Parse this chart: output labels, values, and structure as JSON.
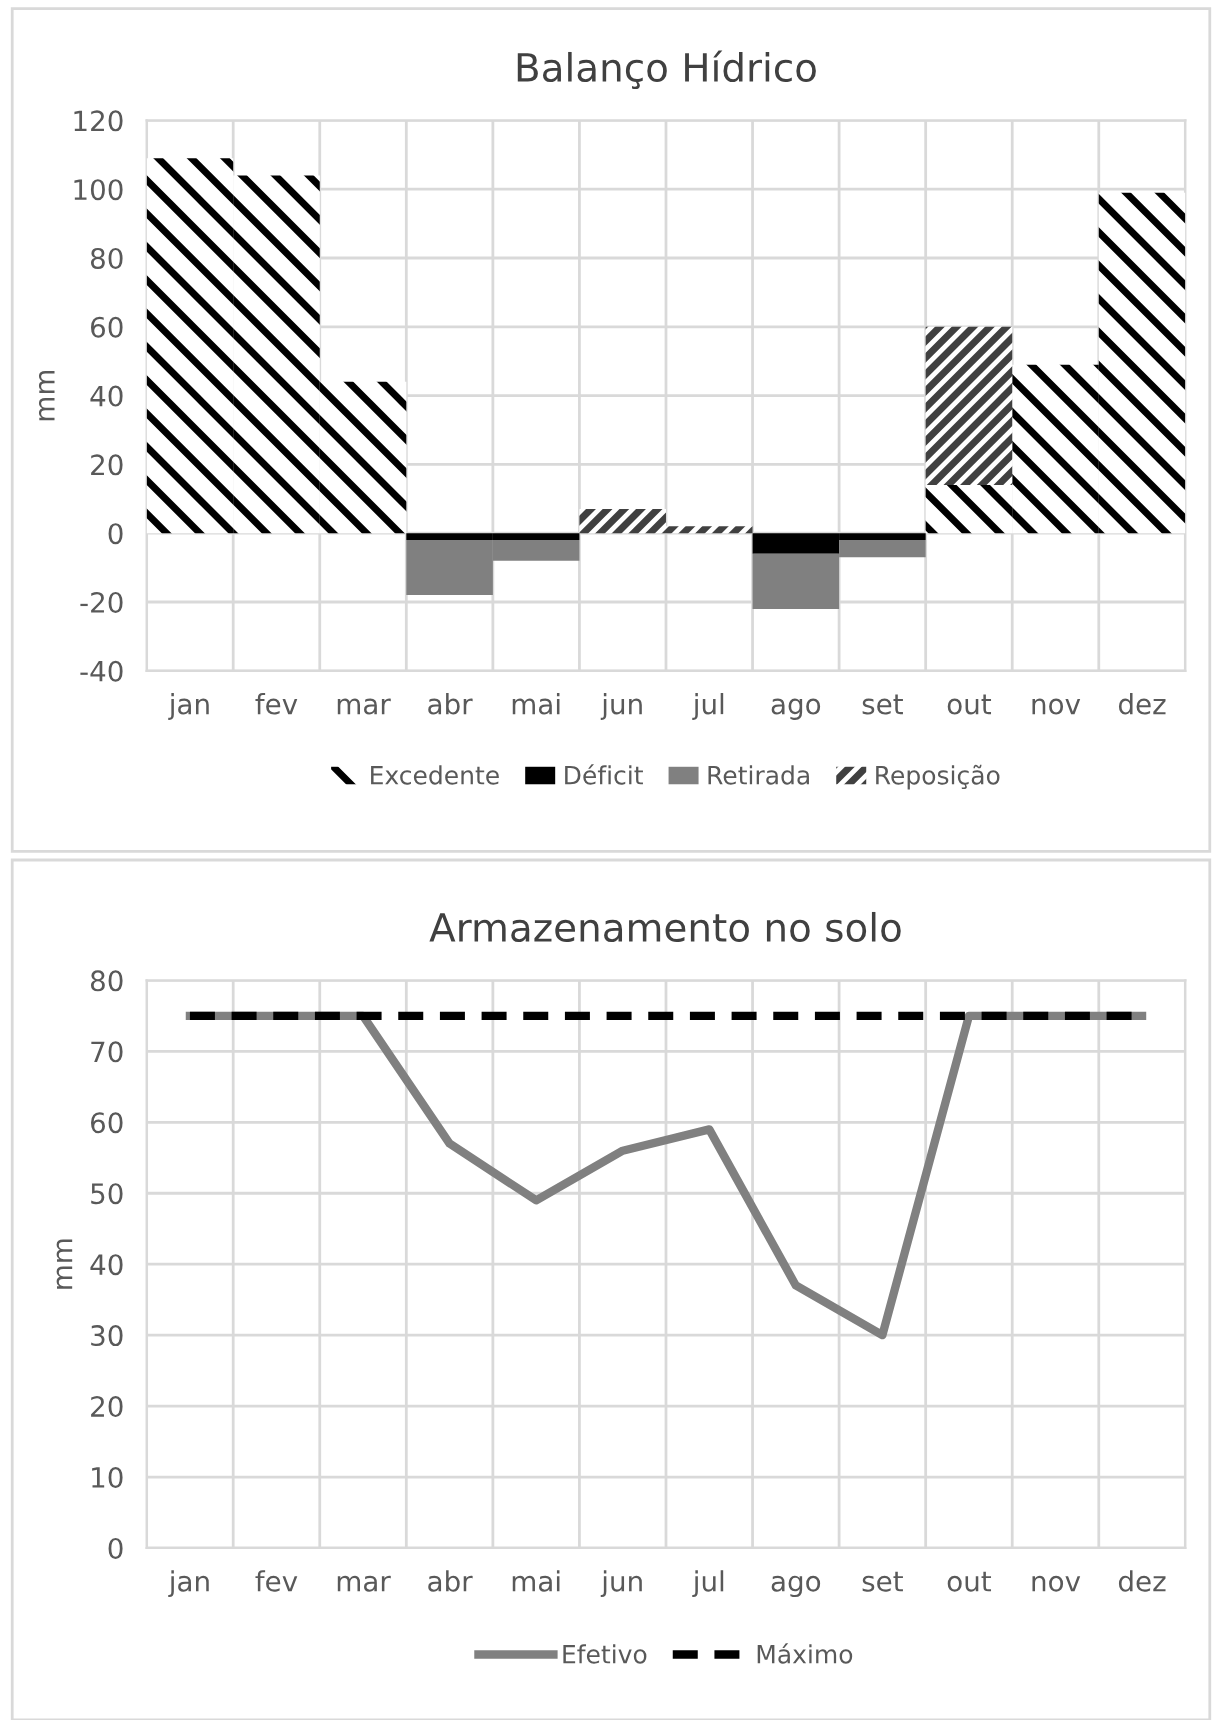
{
  "chart_data": [
    {
      "type": "bar",
      "title": "Balanço Hídrico",
      "ylabel": "mm",
      "stacked": true,
      "categories": [
        "jan",
        "fev",
        "mar",
        "abr",
        "mai",
        "jun",
        "jul",
        "ago",
        "set",
        "out",
        "nov",
        "dez"
      ],
      "series": [
        {
          "name": "Excedente",
          "color": "#000000",
          "values": [
            109,
            104,
            44,
            0,
            0,
            0,
            0,
            0,
            0,
            14,
            49,
            99
          ]
        },
        {
          "name": "Déficit",
          "color": "#000000",
          "values": [
            0,
            0,
            0,
            -2,
            -2,
            0,
            0,
            -6,
            -2,
            0,
            0,
            0
          ]
        },
        {
          "name": "Retirada",
          "color": "#808080",
          "values": [
            0,
            0,
            0,
            -16,
            -6,
            0,
            0,
            -16,
            -5,
            0,
            0,
            0
          ]
        },
        {
          "name": "Reposição",
          "color": "#404040",
          "values": [
            0,
            0,
            0,
            0,
            0,
            7,
            2,
            0,
            0,
            46,
            0,
            0
          ]
        }
      ],
      "ylim": [
        -40,
        120
      ],
      "yticks": [
        -40,
        -20,
        0,
        20,
        40,
        60,
        80,
        100,
        120
      ],
      "grid": true,
      "legend": "bottom"
    },
    {
      "type": "line",
      "title": "Armazenamento no solo",
      "ylabel": "mm",
      "categories": [
        "jan",
        "fev",
        "mar",
        "abr",
        "mai",
        "jun",
        "jul",
        "ago",
        "set",
        "out",
        "nov",
        "dez"
      ],
      "series": [
        {
          "name": "Efetivo",
          "color": "#808080",
          "line_style": "solid",
          "values": [
            75,
            75,
            75,
            57,
            49,
            56,
            59,
            37,
            30,
            75,
            75,
            75
          ]
        },
        {
          "name": "Máximo",
          "color": "#000000",
          "line_style": "dashed",
          "values": [
            75,
            75,
            75,
            75,
            75,
            75,
            75,
            75,
            75,
            75,
            75,
            75
          ]
        }
      ],
      "ylim": [
        0,
        80
      ],
      "yticks": [
        0,
        10,
        20,
        30,
        40,
        50,
        60,
        70,
        80
      ],
      "grid": true,
      "legend": "bottom"
    }
  ]
}
